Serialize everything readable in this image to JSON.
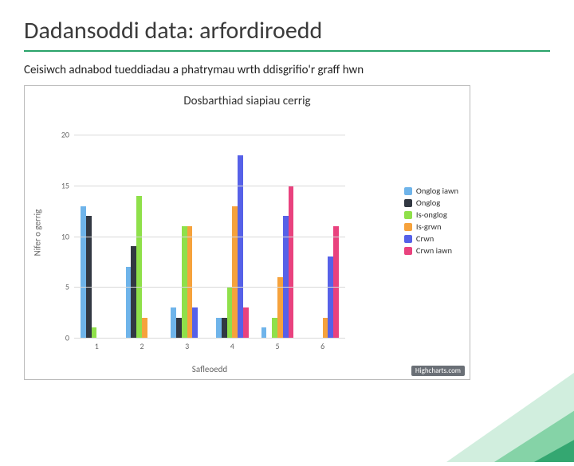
{
  "title": "Dadansoddi data: arfordiroedd",
  "subtitle": "Ceisiwch adnabod tueddiadau a phatrymau wrth ddisgrifio'r graff hwn",
  "accent_color": "#2aa36a",
  "chart": {
    "type": "bar-grouped",
    "title": "Dosbarthiad siapiau cerrig",
    "title_fontsize": 15,
    "ylabel": "Nifer o gerrig",
    "xlabel": "Safleoedd",
    "label_fontsize": 11,
    "tick_fontsize": 10,
    "ylim": [
      0,
      22
    ],
    "yticks": [
      0,
      5,
      10,
      15,
      20
    ],
    "categories": [
      "1",
      "2",
      "3",
      "4",
      "5",
      "6"
    ],
    "background_color": "#ffffff",
    "grid_color": "#d9d9d9",
    "bar_width": 0.12,
    "credit": "Highcharts.com",
    "series": [
      {
        "name": "Onglog iawn",
        "color": "#6fb4ea",
        "values": [
          13,
          7,
          3,
          2,
          1,
          0
        ]
      },
      {
        "name": "Onglog",
        "color": "#323842",
        "values": [
          12,
          9,
          2,
          2,
          0,
          0
        ]
      },
      {
        "name": "Is-onglog",
        "color": "#8fe04a",
        "values": [
          1,
          14,
          11,
          5,
          2,
          0
        ]
      },
      {
        "name": "Is-grwn",
        "color": "#f6a23c",
        "values": [
          0,
          2,
          11,
          13,
          6,
          2
        ]
      },
      {
        "name": "Crwn",
        "color": "#5661e8",
        "values": [
          0,
          0,
          3,
          18,
          12,
          8
        ]
      },
      {
        "name": "Crwn iawn",
        "color": "#e9427e",
        "values": [
          0,
          0,
          0,
          3,
          15,
          11
        ]
      }
    ],
    "legend_position": "right"
  },
  "decor_colors": {
    "light": "#cfeedd",
    "mid": "#7fd1a3",
    "dark": "#2aa36a"
  }
}
